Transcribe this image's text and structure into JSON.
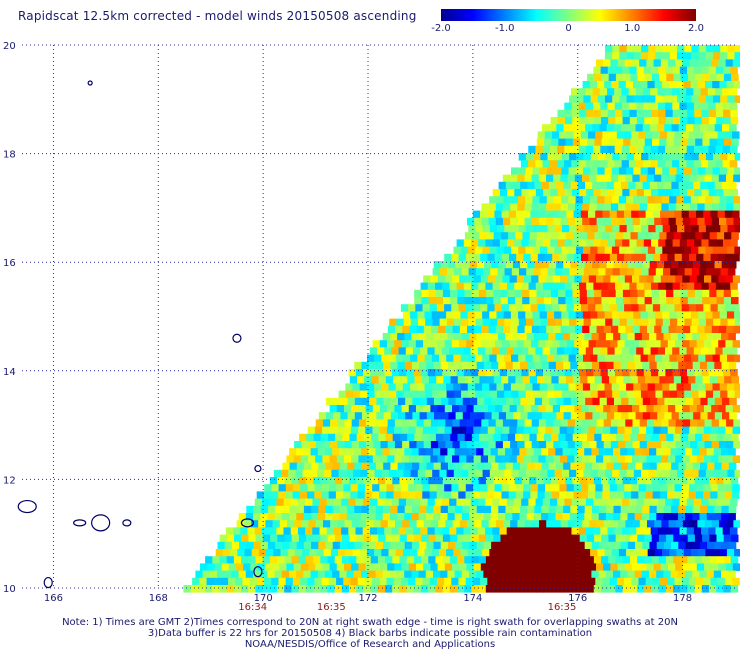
{
  "title": "Rapidscat 12.5km corrected - model winds 20150508 ascending",
  "colorbar": {
    "min": -2.0,
    "max": 2.0,
    "tick_labels": [
      "-2.0",
      "-1.0",
      "0",
      "1.0",
      "2.0"
    ],
    "colors": [
      "#00008f",
      "#0000ff",
      "#0080ff",
      "#00ffff",
      "#80ff80",
      "#ffff00",
      "#ff8000",
      "#ff0000",
      "#800000"
    ]
  },
  "map": {
    "lon_range": [
      165.4,
      179.0
    ],
    "lat_range": [
      10,
      20
    ],
    "lon_labels": [
      "166",
      "168",
      "170",
      "172",
      "174",
      "176",
      "178"
    ],
    "lat_labels": [
      "10",
      "12",
      "14",
      "16",
      "18",
      "20"
    ],
    "time_labels": [
      {
        "lon": 169.8,
        "text": "16:34"
      },
      {
        "lon": 171.3,
        "text": "16:35"
      },
      {
        "lon": 175.7,
        "text": "16:35"
      }
    ],
    "swath_color_high": "#800000",
    "grid_color": "#2a2a9a",
    "coast_color": "#000066"
  },
  "notes": {
    "line1": "Note: 1) Times are GMT 2)Times correspond to 20N at right swath edge - time is right swath for overlapping swaths at 20N",
    "line2": "3)Data buffer is 22 hrs for 20150508 4) Black barbs indicate possible rain contamination",
    "line3": "NOAA/NESDIS/Office of Research and Applications"
  }
}
